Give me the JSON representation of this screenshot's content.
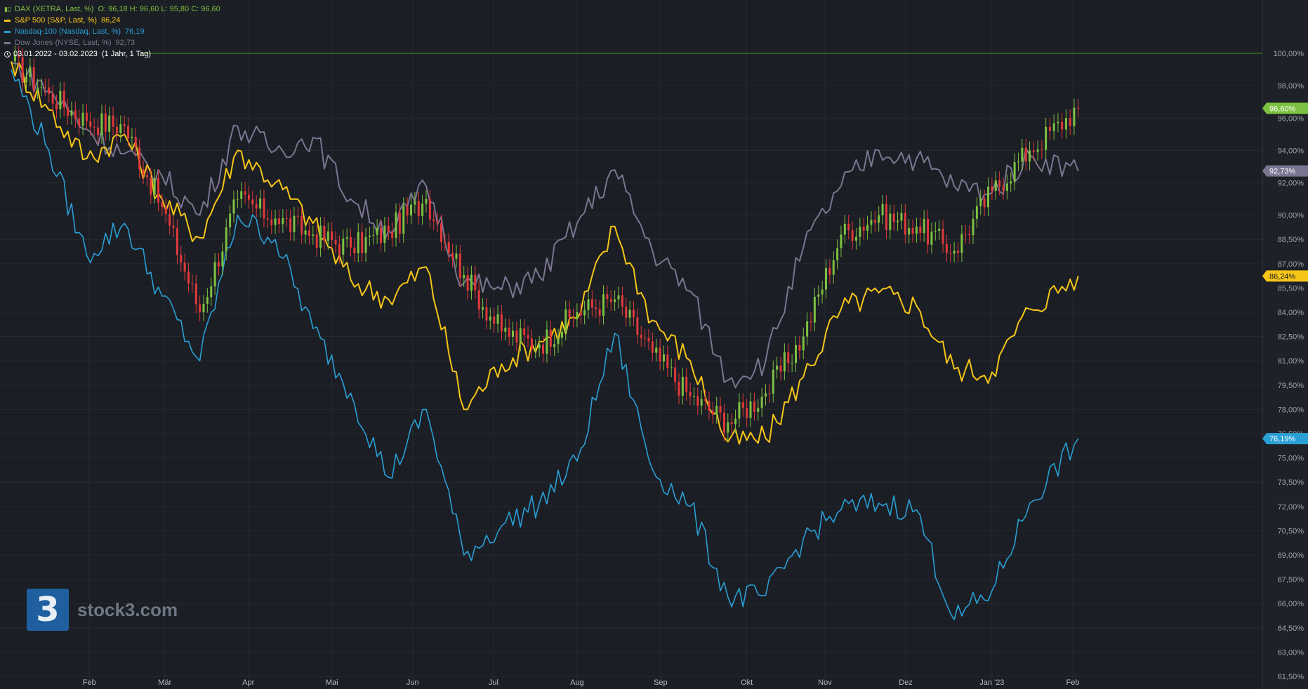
{
  "legend": {
    "dax": {
      "name": "DAX (XETRA, Last, %)",
      "values": "O: 96,18  H: 96,60  L: 95,80  C: 96,60",
      "color": "#7dc142"
    },
    "sp500": {
      "name": "S&P 500 (S&P, Last, %)",
      "values": "86,24",
      "color": "#f5c518"
    },
    "nasdaq": {
      "name": "Nasdaq-100 (Nasdaq, Last, %)",
      "values": "76,19",
      "color": "#2a9fd6"
    },
    "dow": {
      "name": "Dow Jones (NYSE, Last, %)",
      "values": "92,73",
      "color": "#7a7590"
    },
    "range": {
      "dates": "03.01.2022 - 03.02.2023",
      "period": "(1 Jahr, 1 Tag)"
    }
  },
  "logo": {
    "mark": "3",
    "text": "stock3.com"
  },
  "chart_data": {
    "type": "line",
    "x_ticks": [
      "Feb",
      "Mär",
      "Apr",
      "Mai",
      "Jun",
      "Jul",
      "Aug",
      "Sep",
      "Okt",
      "Nov",
      "Dez",
      "Jan '23",
      "Feb"
    ],
    "y_ticks": [
      "100,00%",
      "98,00%",
      "96,00%",
      "94,00%",
      "92,00%",
      "90,00%",
      "88,50%",
      "87,00%",
      "85,50%",
      "84,00%",
      "82,50%",
      "81,00%",
      "79,50%",
      "78,00%",
      "76,50%",
      "75,00%",
      "73,50%",
      "72,00%",
      "70,50%",
      "69,00%",
      "67,50%",
      "66,00%",
      "64,50%",
      "63,00%",
      "61,50%"
    ],
    "ylim": [
      61.5,
      100
    ],
    "reference_line": 100,
    "x": [
      "2022-01-03",
      "2022-01-17",
      "2022-01-31",
      "2022-02-14",
      "2022-02-28",
      "2022-03-14",
      "2022-03-28",
      "2022-04-11",
      "2022-04-25",
      "2022-05-09",
      "2022-05-23",
      "2022-06-06",
      "2022-06-20",
      "2022-07-04",
      "2022-07-18",
      "2022-08-01",
      "2022-08-15",
      "2022-08-29",
      "2022-09-12",
      "2022-09-26",
      "2022-10-10",
      "2022-10-24",
      "2022-11-07",
      "2022-11-21",
      "2022-12-05",
      "2022-12-19",
      "2023-01-02",
      "2023-01-16",
      "2023-02-03"
    ],
    "series": [
      {
        "name": "DAX (XETRA, Last, %)",
        "color": "#7dc142",
        "style": "candles",
        "values": [
          99.5,
          97.5,
          95.8,
          95.5,
          90.5,
          84.0,
          91.0,
          89.8,
          88.8,
          88.0,
          89.0,
          91.0,
          86.3,
          82.8,
          82.0,
          84.0,
          84.8,
          81.5,
          78.8,
          77.2,
          79.0,
          82.5,
          88.8,
          90.0,
          89.3,
          87.8,
          91.5,
          94.0,
          96.6
        ]
      },
      {
        "name": "S&P 500 (S&P, Last, %)",
        "color": "#f5c518",
        "style": "line",
        "values": [
          99.5,
          96.5,
          93.5,
          95.0,
          91.0,
          88.6,
          94.0,
          92.0,
          89.5,
          86.0,
          84.8,
          86.8,
          78.0,
          80.8,
          82.2,
          83.6,
          89.3,
          83.5,
          81.0,
          76.0,
          76.2,
          80.0,
          84.2,
          85.2,
          84.4,
          80.5,
          80.3,
          84.2,
          86.24
        ]
      },
      {
        "name": "Nasdaq-100 (Nasdaq, Last, %)",
        "color": "#2a9fd6",
        "style": "line",
        "values": [
          99.0,
          94.0,
          87.5,
          89.5,
          85.0,
          81.0,
          90.0,
          88.5,
          83.0,
          79.0,
          73.8,
          78.0,
          69.0,
          70.8,
          72.2,
          74.8,
          82.7,
          74.3,
          72.0,
          66.4,
          66.5,
          70.0,
          71.8,
          72.2,
          71.8,
          65.0,
          66.8,
          72.2,
          76.19
        ]
      },
      {
        "name": "Dow Jones (NYSE, Last, %)",
        "color": "#7a7590",
        "style": "line",
        "values": [
          99.4,
          97.7,
          95.3,
          93.8,
          92.4,
          90.0,
          95.5,
          94.0,
          94.8,
          91.0,
          89.0,
          91.8,
          85.8,
          85.4,
          86.2,
          89.5,
          92.8,
          87.8,
          85.3,
          79.8,
          81.0,
          88.0,
          91.8,
          94.0,
          93.5,
          91.8,
          91.4,
          93.7,
          92.73
        ]
      }
    ],
    "last_value_labels": [
      {
        "text": "96,60%",
        "value": 96.6,
        "color": "#7dc142"
      },
      {
        "text": "92,73%",
        "value": 92.73,
        "color": "#7a7590"
      },
      {
        "text": "86,24%",
        "value": 86.24,
        "color": "#f5c518"
      },
      {
        "text": "76,19%",
        "value": 76.19,
        "color": "#2a9fd6"
      }
    ]
  }
}
